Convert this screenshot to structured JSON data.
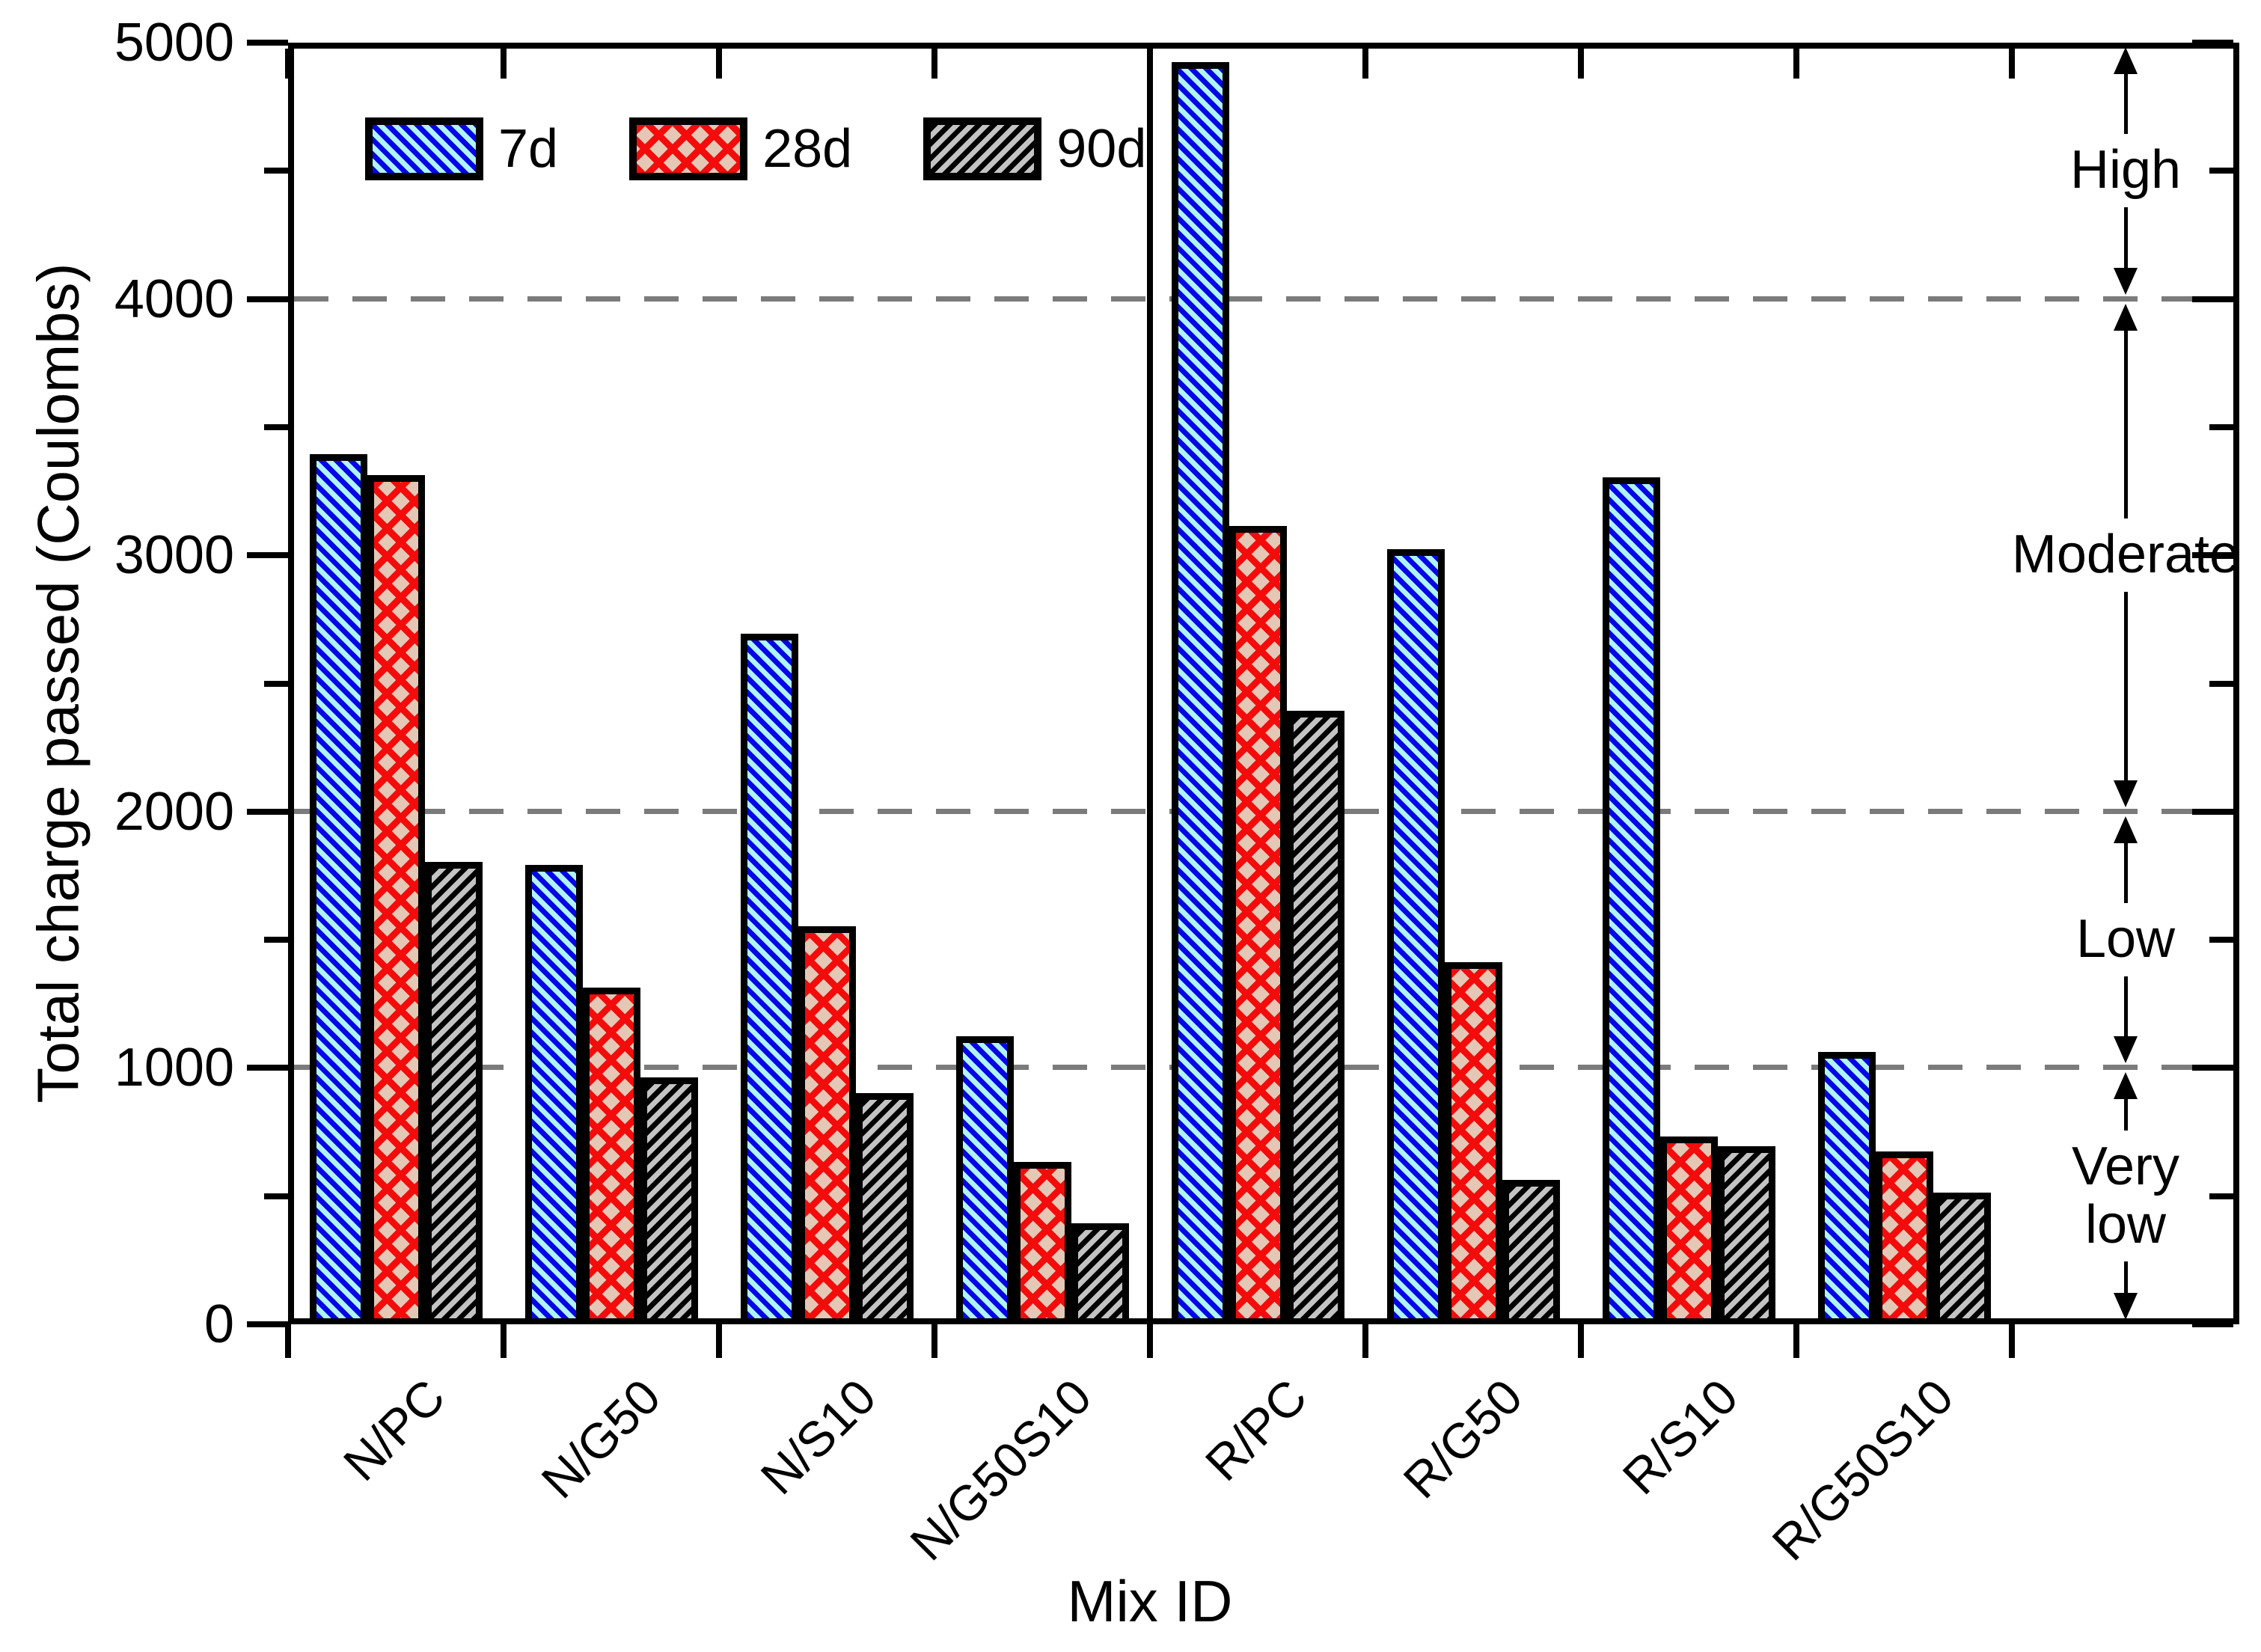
{
  "chart_data": {
    "type": "bar",
    "title": "",
    "xlabel": "Mix ID",
    "ylabel": "Total charge passed (Coulombs)",
    "ylim": [
      0,
      5000
    ],
    "y_major_ticks": [
      0,
      1000,
      2000,
      3000,
      4000,
      5000
    ],
    "y_minor_ticks": [
      500,
      1500,
      2500,
      3500,
      4500
    ],
    "gridlines_dashed_at": [
      1000,
      2000,
      4000
    ],
    "grid": "horizontal dashed gray lines at 1000, 2000 and 4000",
    "legend_position": "top-left inside plot",
    "categories": [
      "N/PC",
      "N/G50",
      "N/S10",
      "N/G50S10",
      "R/PC",
      "R/G50",
      "R/S10",
      "R/G50S10"
    ],
    "series": [
      {
        "name": "7d",
        "fill": "#aef3f6",
        "hatch": "backslash-diagonal",
        "hatch_color": "#0505e8",
        "values": [
          3370,
          1770,
          2670,
          1100,
          4900,
          3000,
          3280,
          1040
        ]
      },
      {
        "name": "28d",
        "fill": "#e4c7b4",
        "hatch": "cross-diagonal",
        "hatch_color": "#f40b0b",
        "values": [
          3290,
          1290,
          1530,
          610,
          3090,
          1390,
          710,
          650
        ]
      },
      {
        "name": "90d",
        "fill": "#c3c3c3",
        "hatch": "slash-diagonal",
        "hatch_color": "#000000",
        "values": [
          1780,
          940,
          880,
          370,
          2370,
          540,
          670,
          490
        ]
      }
    ],
    "group_divider_after_category": "N/G50S10",
    "zones": [
      {
        "label": "High",
        "from": 4000,
        "to": 5000
      },
      {
        "label": "Moderate",
        "from": 2000,
        "to": 4000
      },
      {
        "label": "Low",
        "from": 1000,
        "to": 2000
      },
      {
        "label": "Very\nlow",
        "from": 0,
        "to": 1000
      }
    ]
  },
  "colors": {
    "background": "#ffffff",
    "axis": "#000000",
    "gridline": "#7b7b7b",
    "text": "#000000"
  }
}
